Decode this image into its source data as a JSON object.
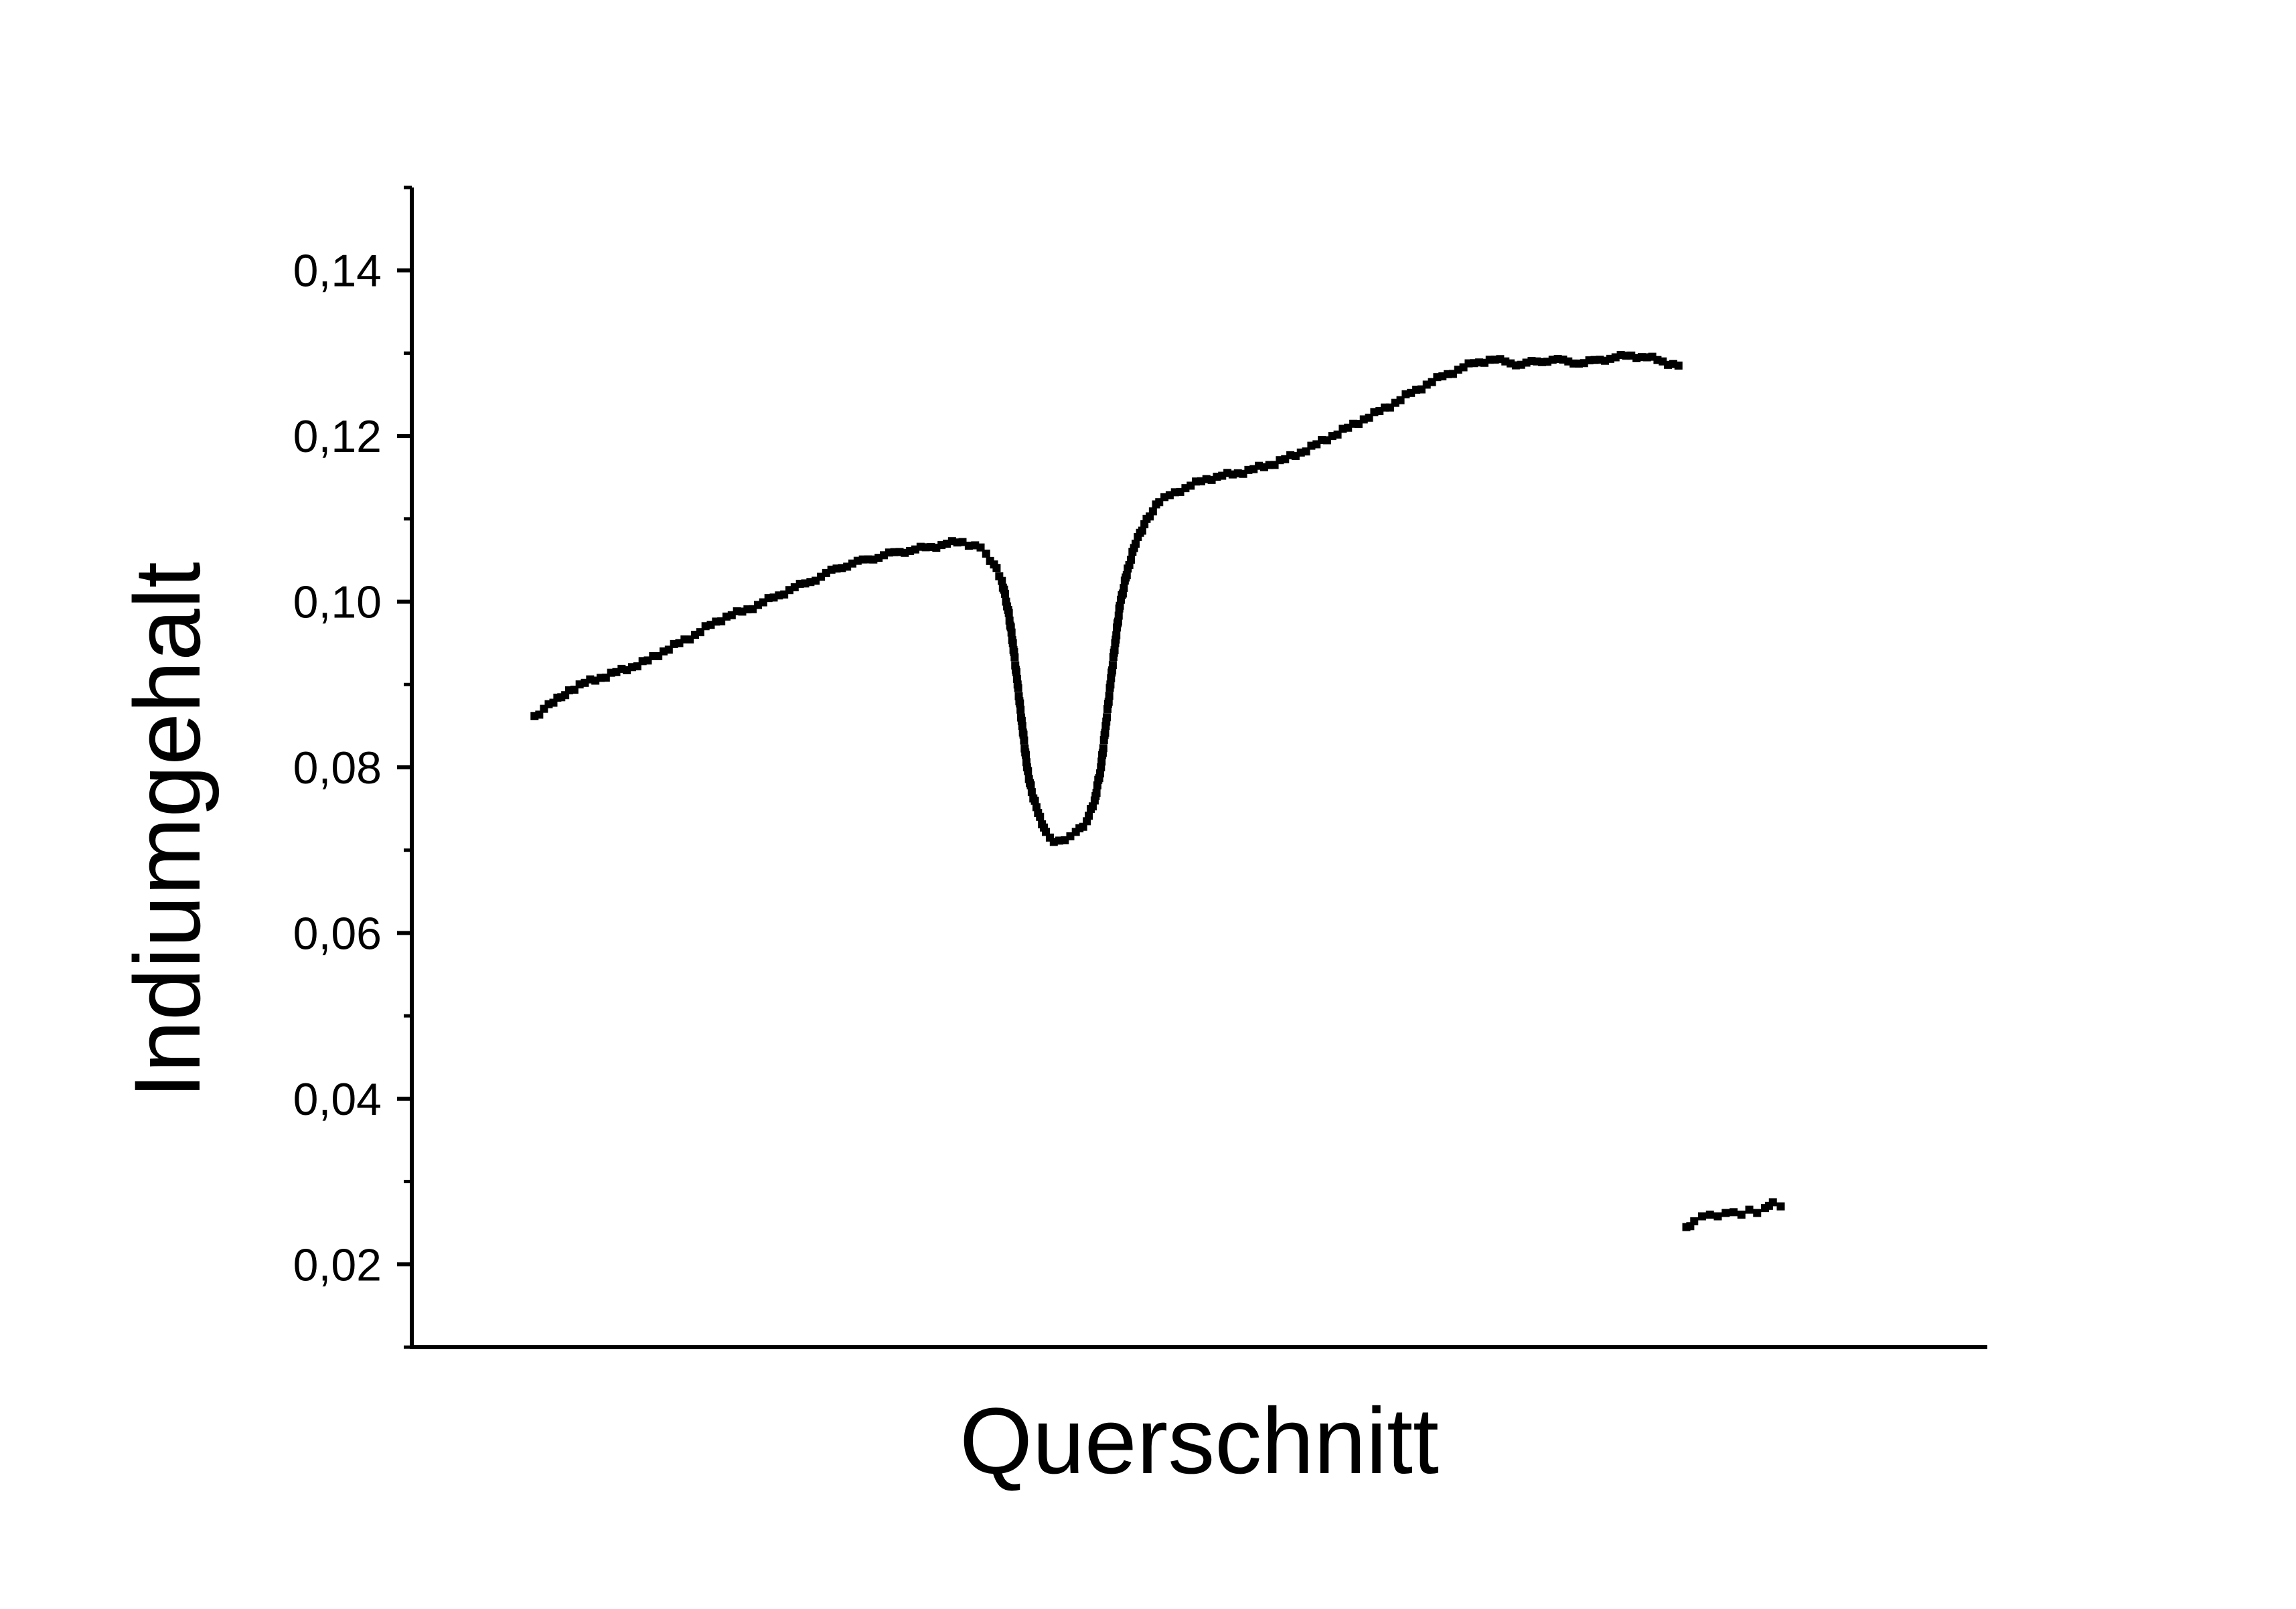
{
  "chart_data": {
    "type": "scatter",
    "xlabel": "Querschnitt",
    "ylabel": "Indiumgehalt",
    "ylim": [
      0.01,
      0.15
    ],
    "xlim": [
      0,
      100
    ],
    "y_ticks": [
      0.02,
      0.04,
      0.06,
      0.08,
      0.1,
      0.12,
      0.14
    ],
    "y_tick_labels": [
      "0,02",
      "0,04",
      "0,06",
      "0,08",
      "0,10",
      "0,12",
      "0,14"
    ],
    "x_tick_labels": [],
    "grid": false,
    "legend": "none",
    "marker_color": "#000000",
    "series": [
      {
        "points": [
          [
            7.8,
            0.0862
          ],
          [
            9.0,
            0.0878
          ],
          [
            10.0,
            0.0893
          ],
          [
            11.0,
            0.0902
          ],
          [
            12.0,
            0.0908
          ],
          [
            13.0,
            0.0915
          ],
          [
            14.0,
            0.0921
          ],
          [
            15.0,
            0.0929
          ],
          [
            16.0,
            0.094
          ],
          [
            17.0,
            0.095
          ],
          [
            18.0,
            0.096
          ],
          [
            19.0,
            0.0972
          ],
          [
            20.0,
            0.0982
          ],
          [
            21.0,
            0.0988
          ],
          [
            22.0,
            0.0996
          ],
          [
            23.0,
            0.1005
          ],
          [
            24.0,
            0.1014
          ],
          [
            25.0,
            0.1022
          ],
          [
            26.0,
            0.103
          ],
          [
            27.0,
            0.104
          ],
          [
            28.0,
            0.1046
          ],
          [
            29.0,
            0.1051
          ],
          [
            30.0,
            0.1056
          ],
          [
            31.0,
            0.106
          ],
          [
            32.0,
            0.1063
          ],
          [
            33.0,
            0.1066
          ],
          [
            34.0,
            0.107
          ],
          [
            35.0,
            0.1072
          ],
          [
            35.8,
            0.1068
          ],
          [
            36.5,
            0.1058
          ],
          [
            37.0,
            0.1045
          ],
          [
            37.5,
            0.1025
          ],
          [
            37.9,
            0.099
          ],
          [
            38.2,
            0.095
          ],
          [
            38.5,
            0.09
          ],
          [
            38.8,
            0.085
          ],
          [
            39.1,
            0.08
          ],
          [
            39.4,
            0.077
          ],
          [
            39.8,
            0.0745
          ],
          [
            40.3,
            0.0722
          ],
          [
            40.8,
            0.071
          ],
          [
            41.5,
            0.0712
          ],
          [
            42.2,
            0.0722
          ],
          [
            42.9,
            0.0735
          ],
          [
            43.4,
            0.076
          ],
          [
            43.8,
            0.08
          ],
          [
            44.1,
            0.085
          ],
          [
            44.4,
            0.09
          ],
          [
            44.7,
            0.095
          ],
          [
            45.0,
            0.0995
          ],
          [
            45.5,
            0.104
          ],
          [
            46.0,
            0.107
          ],
          [
            46.7,
            0.11
          ],
          [
            47.5,
            0.112
          ],
          [
            48.5,
            0.1132
          ],
          [
            49.5,
            0.114
          ],
          [
            50.5,
            0.1148
          ],
          [
            51.5,
            0.1152
          ],
          [
            52.5,
            0.1155
          ],
          [
            53.5,
            0.116
          ],
          [
            54.5,
            0.1165
          ],
          [
            55.5,
            0.1172
          ],
          [
            56.5,
            0.118
          ],
          [
            57.5,
            0.119
          ],
          [
            58.5,
            0.12
          ],
          [
            59.5,
            0.121
          ],
          [
            60.5,
            0.122
          ],
          [
            61.5,
            0.123
          ],
          [
            62.5,
            0.124
          ],
          [
            63.5,
            0.1252
          ],
          [
            64.5,
            0.1262
          ],
          [
            65.5,
            0.1272
          ],
          [
            66.5,
            0.128
          ],
          [
            67.5,
            0.1288
          ],
          [
            68.5,
            0.1292
          ],
          [
            69.5,
            0.129
          ],
          [
            70.5,
            0.1286
          ],
          [
            71.5,
            0.129
          ],
          [
            72.5,
            0.1292
          ],
          [
            73.5,
            0.129
          ],
          [
            74.5,
            0.1288
          ],
          [
            75.5,
            0.1292
          ],
          [
            76.5,
            0.1295
          ],
          [
            77.5,
            0.1297
          ],
          [
            78.5,
            0.1295
          ],
          [
            79.5,
            0.129
          ],
          [
            80.5,
            0.1285
          ]
        ]
      },
      {
        "points": [
          [
            81.0,
            0.0245
          ],
          [
            81.5,
            0.0252
          ],
          [
            82.0,
            0.0258
          ],
          [
            82.5,
            0.026
          ],
          [
            83.0,
            0.0258
          ],
          [
            83.5,
            0.0262
          ],
          [
            84.0,
            0.0263
          ],
          [
            84.5,
            0.026
          ],
          [
            85.0,
            0.0266
          ],
          [
            85.5,
            0.0262
          ],
          [
            86.0,
            0.0268
          ],
          [
            86.5,
            0.0275
          ],
          [
            87.0,
            0.027
          ]
        ]
      }
    ]
  }
}
